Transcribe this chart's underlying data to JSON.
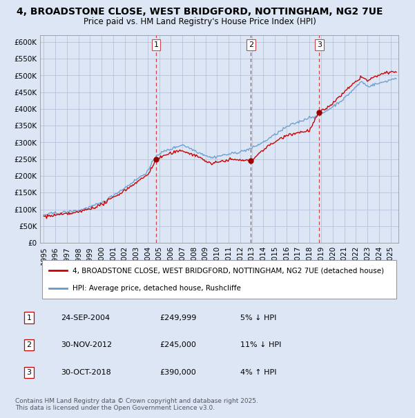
{
  "title": "4, BROADSTONE CLOSE, WEST BRIDGFORD, NOTTINGHAM, NG2 7UE",
  "subtitle": "Price paid vs. HM Land Registry's House Price Index (HPI)",
  "ylim": [
    0,
    620000
  ],
  "yticks": [
    0,
    50000,
    100000,
    150000,
    200000,
    250000,
    300000,
    350000,
    400000,
    450000,
    500000,
    550000,
    600000
  ],
  "ytick_labels": [
    "£0",
    "£50K",
    "£100K",
    "£150K",
    "£200K",
    "£250K",
    "£300K",
    "£350K",
    "£400K",
    "£450K",
    "£500K",
    "£550K",
    "£600K"
  ],
  "xlim_start": 1994.7,
  "xlim_end": 2025.7,
  "bg_color": "#dce6f5",
  "plot_bg_color": "#dce6f5",
  "hpi_color": "#6699cc",
  "price_color": "#cc0000",
  "sale_marker_color": "#990000",
  "vline_color": "#cc4444",
  "sale1_x": 2004.73,
  "sale1_y": 249999,
  "sale1_label": "1",
  "sale1_date": "24-SEP-2004",
  "sale1_price": "£249,999",
  "sale1_pct": "5% ↓ HPI",
  "sale2_x": 2012.92,
  "sale2_y": 245000,
  "sale2_label": "2",
  "sale2_date": "30-NOV-2012",
  "sale2_price": "£245,000",
  "sale2_pct": "11% ↓ HPI",
  "sale3_x": 2018.83,
  "sale3_y": 390000,
  "sale3_label": "3",
  "sale3_date": "30-OCT-2018",
  "sale3_price": "£390,000",
  "sale3_pct": "4% ↑ HPI",
  "legend_line1": "4, BROADSTONE CLOSE, WEST BRIDGFORD, NOTTINGHAM, NG2 7UE (detached house)",
  "legend_line2": "HPI: Average price, detached house, Rushcliffe",
  "footnote": "Contains HM Land Registry data © Crown copyright and database right 2025.\nThis data is licensed under the Open Government Licence v3.0.",
  "xtick_years": [
    1995,
    1996,
    1997,
    1998,
    1999,
    2000,
    2001,
    2002,
    2003,
    2004,
    2005,
    2006,
    2007,
    2008,
    2009,
    2010,
    2011,
    2012,
    2013,
    2014,
    2015,
    2016,
    2017,
    2018,
    2019,
    2020,
    2021,
    2022,
    2023,
    2024,
    2025
  ]
}
